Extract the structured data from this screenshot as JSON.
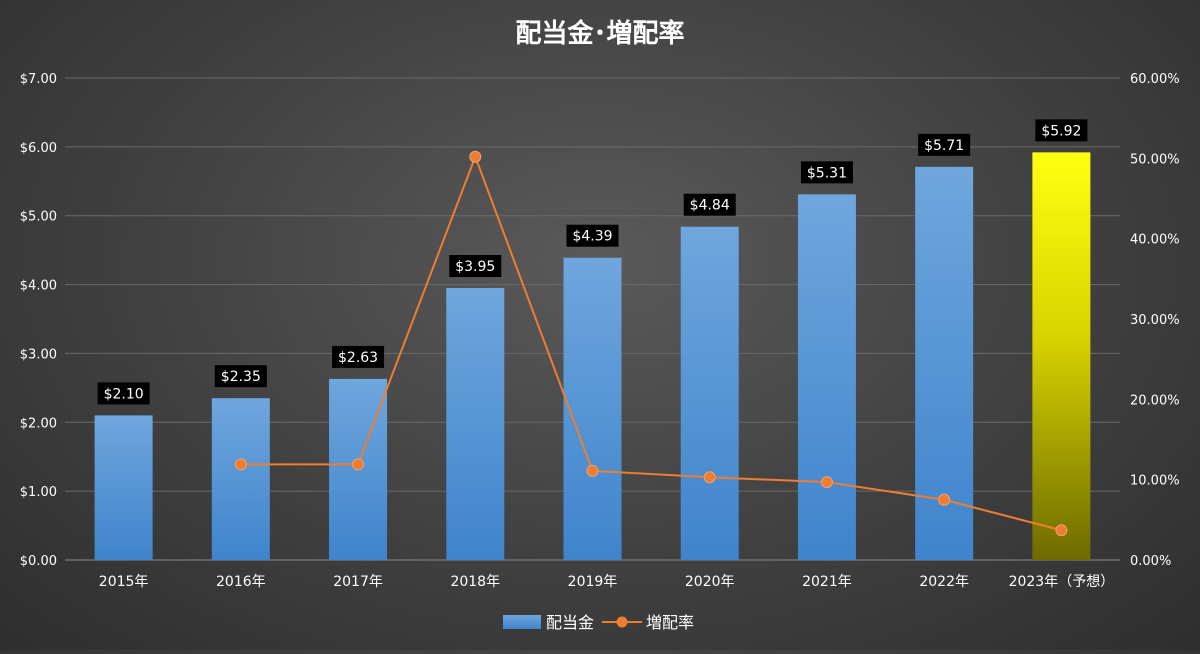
{
  "chart_data": {
    "type": "bar",
    "title": "配当金･増配率",
    "categories": [
      "2015年",
      "2016年",
      "2017年",
      "2018年",
      "2019年",
      "2020年",
      "2021年",
      "2022年",
      "2023年（予想）"
    ],
    "series": [
      {
        "name": "配当金",
        "type": "bar",
        "axis": "left",
        "values": [
          2.1,
          2.35,
          2.63,
          3.95,
          4.39,
          4.84,
          5.31,
          5.71,
          5.92
        ],
        "labels": [
          "$2.10",
          "$2.35",
          "$2.63",
          "$3.95",
          "$4.39",
          "$4.84",
          "$5.31",
          "$5.71",
          "$5.92"
        ],
        "color": "#5b9bd5",
        "highlight_last_color": "#ffff00"
      },
      {
        "name": "増配率",
        "type": "line",
        "axis": "right",
        "values": [
          null,
          11.9,
          11.9,
          50.2,
          11.1,
          10.3,
          9.7,
          7.5,
          3.7
        ],
        "color": "#ed7d31"
      }
    ],
    "y_left": {
      "range": [
        0,
        7
      ],
      "ticks": [
        "$0.00",
        "$1.00",
        "$2.00",
        "$3.00",
        "$4.00",
        "$5.00",
        "$6.00",
        "$7.00"
      ]
    },
    "y_right": {
      "range": [
        0,
        60
      ],
      "ticks": [
        "0.00%",
        "10.00%",
        "20.00%",
        "30.00%",
        "40.00%",
        "50.00%",
        "60.00%"
      ]
    },
    "grid": true,
    "legend_position": "bottom"
  }
}
